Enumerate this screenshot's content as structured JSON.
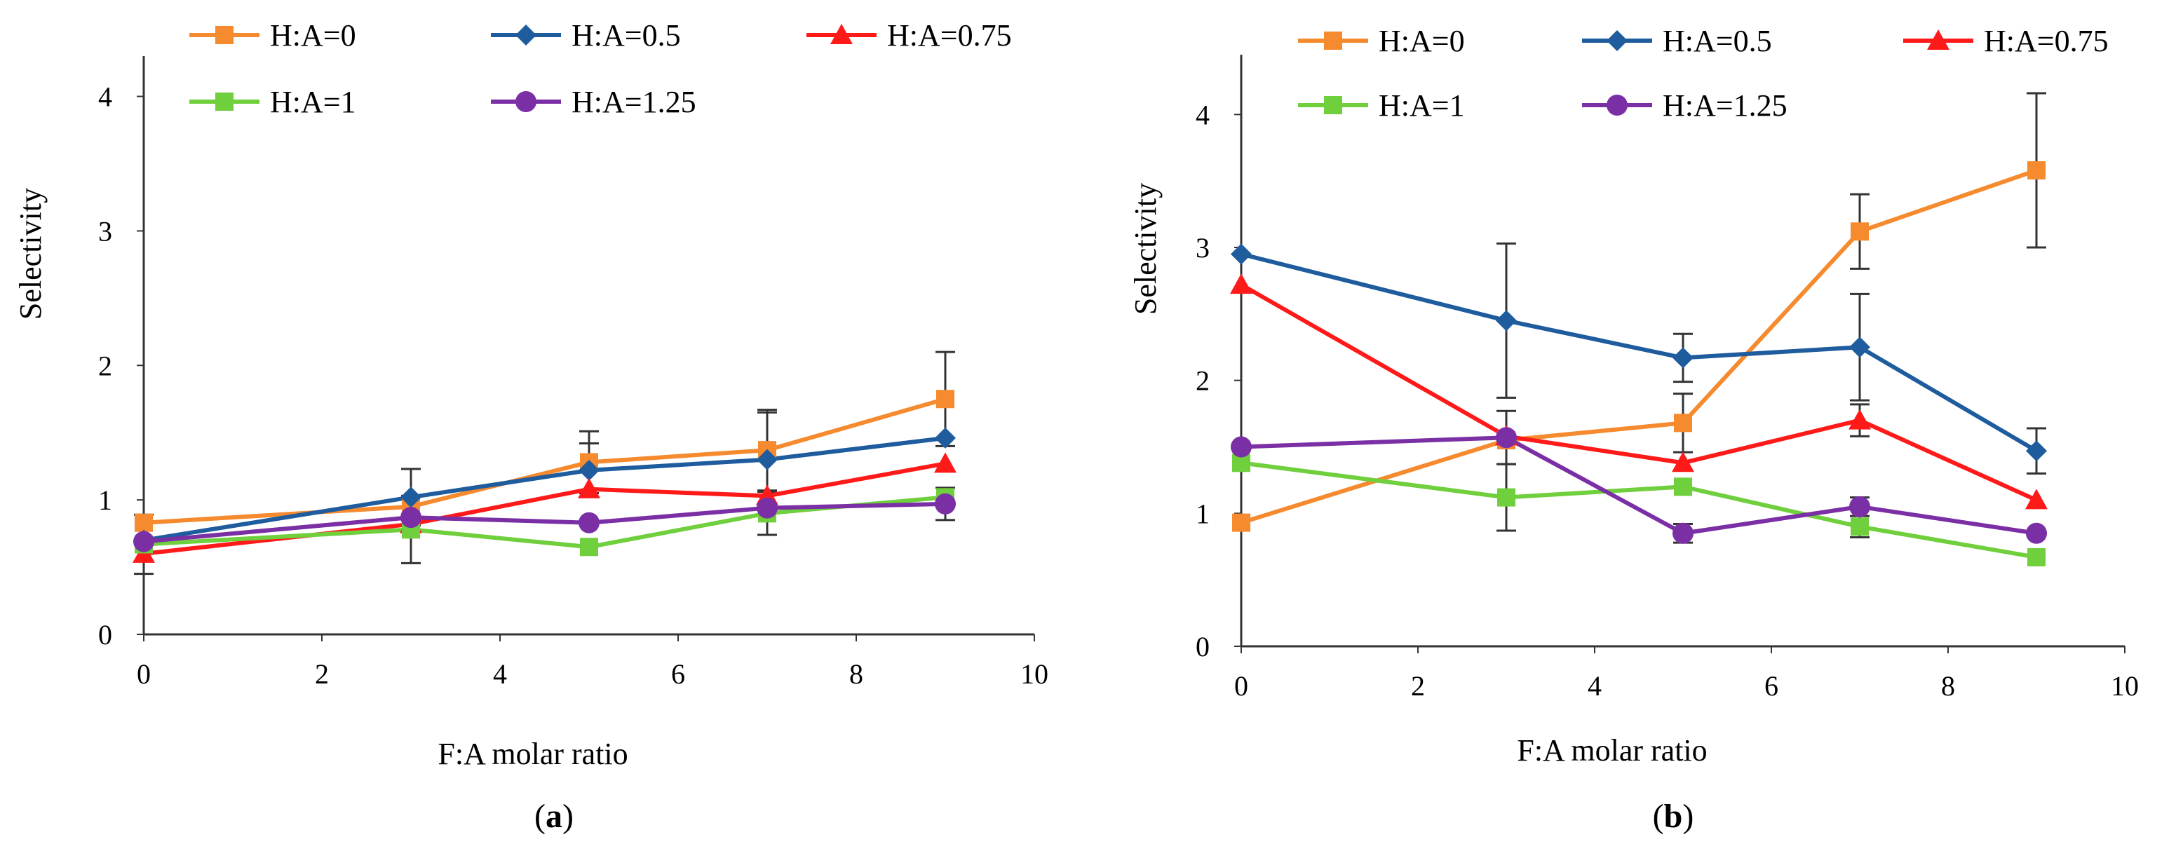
{
  "chart_data": [
    {
      "type": "line",
      "panel_label": "a",
      "xlabel": "F:A molar ratio",
      "ylabel": "Selectivity",
      "xlim": [
        0,
        10
      ],
      "ylim": [
        0,
        4.3
      ],
      "xticks": [
        "0",
        "2",
        "4",
        "6",
        "8",
        "10"
      ],
      "yticks": [
        "0",
        "1",
        "2",
        "3",
        "4"
      ],
      "legend_position": "top",
      "x": [
        0,
        3,
        5,
        7,
        9
      ],
      "series": [
        {
          "name": "H:A=0",
          "color": "#F58A2E",
          "marker": "square",
          "values": [
            0.83,
            0.95,
            1.28,
            1.37,
            1.75
          ],
          "errors": [
            0.0,
            0.0,
            0.23,
            0.3,
            0.35
          ]
        },
        {
          "name": "H:A=0.5",
          "color": "#1F5C9E",
          "marker": "diamond",
          "values": [
            0.7,
            1.02,
            1.22,
            1.3,
            1.46
          ],
          "errors": [
            0.0,
            0.21,
            0.2,
            0.35,
            0.0
          ]
        },
        {
          "name": "H:A=0.75",
          "color": "#FF1A1A",
          "marker": "triangle",
          "values": [
            0.6,
            0.82,
            1.08,
            1.03,
            1.27
          ],
          "errors": [
            0.0,
            0.0,
            0.0,
            0.0,
            0.0
          ]
        },
        {
          "name": "H:A=1",
          "color": "#6FCF3C",
          "marker": "square",
          "values": [
            0.67,
            0.78,
            0.65,
            0.9,
            1.02
          ],
          "errors": [
            0.22,
            0.25,
            0.0,
            0.16,
            0.0
          ]
        },
        {
          "name": "H:A=1.25",
          "color": "#7B2FA5",
          "marker": "circle",
          "values": [
            0.69,
            0.87,
            0.83,
            0.94,
            0.97
          ],
          "errors": [
            0.0,
            0.0,
            0.0,
            0.0,
            0.12
          ]
        }
      ]
    },
    {
      "type": "line",
      "panel_label": "b",
      "xlabel": "F:A molar ratio",
      "ylabel": "Selectivity",
      "xlim": [
        0,
        10
      ],
      "ylim": [
        0,
        4.45
      ],
      "xticks": [
        "0",
        "2",
        "4",
        "6",
        "8",
        "10"
      ],
      "yticks": [
        "0",
        "1",
        "2",
        "3",
        "4"
      ],
      "legend_position": "top",
      "x": [
        0,
        3,
        5,
        7,
        9
      ],
      "series": [
        {
          "name": "H:A=0",
          "color": "#F58A2E",
          "marker": "square",
          "values": [
            0.93,
            1.55,
            1.68,
            3.12,
            3.58
          ],
          "errors": [
            0.0,
            0.0,
            0.22,
            0.28,
            0.58
          ]
        },
        {
          "name": "H:A=0.5",
          "color": "#1F5C9E",
          "marker": "diamond",
          "values": [
            2.95,
            2.45,
            2.17,
            2.25,
            1.47
          ],
          "errors": [
            0.0,
            0.58,
            0.18,
            0.4,
            0.17
          ]
        },
        {
          "name": "H:A=0.75",
          "color": "#FF1A1A",
          "marker": "triangle",
          "values": [
            2.72,
            1.58,
            1.38,
            1.7,
            1.1
          ],
          "errors": [
            0.0,
            0.0,
            0.0,
            0.12,
            0.0
          ]
        },
        {
          "name": "H:A=1",
          "color": "#6FCF3C",
          "marker": "square",
          "values": [
            1.38,
            1.12,
            1.2,
            0.9,
            0.67
          ],
          "errors": [
            0.0,
            0.25,
            0.0,
            0.08,
            0.0
          ]
        },
        {
          "name": "H:A=1.25",
          "color": "#7B2FA5",
          "marker": "circle",
          "values": [
            1.5,
            1.57,
            0.85,
            1.05,
            0.85
          ],
          "errors": [
            0.0,
            0.2,
            0.07,
            0.07,
            0.0
          ]
        }
      ]
    }
  ]
}
